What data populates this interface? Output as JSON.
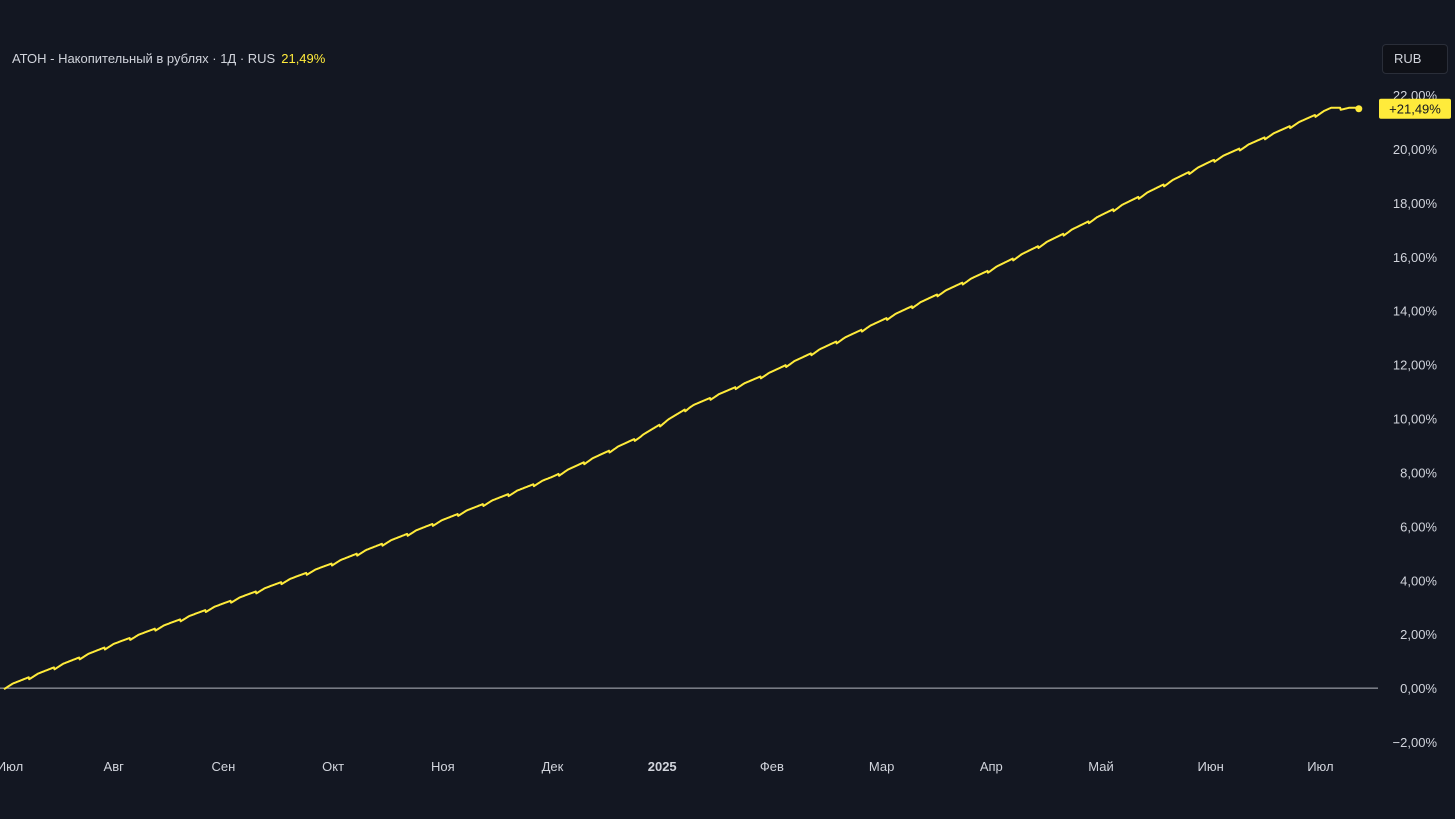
{
  "legend": {
    "title": "АТОН - Накопительный в рублях · 1Д · RUS",
    "value": "21,49%"
  },
  "currency_button": {
    "label": "RUB"
  },
  "colors": {
    "background": "#131722",
    "line": "#ffeb3b",
    "baseline": "#d1d4dc",
    "text": "#d1d4dc"
  },
  "chart_data": {
    "type": "line",
    "x_range": [
      0,
      12.35
    ],
    "x_tick_labels": [
      {
        "label": "Июл",
        "x": 0,
        "bold": false
      },
      {
        "label": "Авг",
        "x": 1,
        "bold": false
      },
      {
        "label": "Сен",
        "x": 2,
        "bold": false
      },
      {
        "label": "Окт",
        "x": 3,
        "bold": false
      },
      {
        "label": "Ноя",
        "x": 4,
        "bold": false
      },
      {
        "label": "Дек",
        "x": 5,
        "bold": false
      },
      {
        "label": "2025",
        "x": 6,
        "bold": true
      },
      {
        "label": "Фев",
        "x": 7,
        "bold": false
      },
      {
        "label": "Мар",
        "x": 8,
        "bold": false
      },
      {
        "label": "Апр",
        "x": 9,
        "bold": false
      },
      {
        "label": "Май",
        "x": 10,
        "bold": false
      },
      {
        "label": "Июн",
        "x": 11,
        "bold": false
      },
      {
        "label": "Июл",
        "x": 12,
        "bold": false
      }
    ],
    "y_range": [
      -2.2,
      22.4
    ],
    "y_ticks": [
      {
        "label": "22,00%",
        "value": 22
      },
      {
        "label": "20,00%",
        "value": 20
      },
      {
        "label": "18,00%",
        "value": 18
      },
      {
        "label": "16,00%",
        "value": 16
      },
      {
        "label": "14,00%",
        "value": 14
      },
      {
        "label": "12,00%",
        "value": 12
      },
      {
        "label": "10,00%",
        "value": 10
      },
      {
        "label": "8,00%",
        "value": 8
      },
      {
        "label": "6,00%",
        "value": 6
      },
      {
        "label": "4,00%",
        "value": 4
      },
      {
        "label": "2,00%",
        "value": 2
      },
      {
        "label": "0,00%",
        "value": 0
      },
      {
        "label": "−2,00%",
        "value": -2
      }
    ],
    "baseline": 0,
    "series": [
      {
        "points": [
          [
            0,
            0
          ],
          [
            1,
            1.6
          ],
          [
            2,
            3.1
          ],
          [
            3,
            4.6
          ],
          [
            4,
            6.2
          ],
          [
            5,
            7.8
          ],
          [
            5.8,
            9.3
          ],
          [
            6.25,
            10.4
          ],
          [
            7,
            11.7
          ],
          [
            8,
            13.6
          ],
          [
            9,
            15.5
          ],
          [
            10,
            17.5
          ],
          [
            11,
            19.5
          ],
          [
            12.1,
            21.49
          ],
          [
            12.35,
            21.49
          ]
        ],
        "last_value_label": "+21,49%"
      }
    ]
  }
}
